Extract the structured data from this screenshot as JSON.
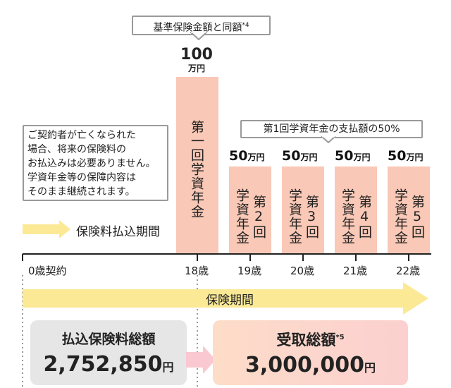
{
  "top_callout": {
    "text": "基準保険金額と同額",
    "note": "*4"
  },
  "first_payment": {
    "amount": "100",
    "unit": "万円",
    "label": "第一回学資年金"
  },
  "mid_callout": {
    "text": "第1回学資年金の支払額の50%"
  },
  "info_callout": {
    "lines": [
      "ご契約者が亡くなられた",
      "場合、将来の保険料の",
      "お払込みは必要ありません。",
      "学資年金等の保障内容は",
      "そのまま継続されます。"
    ]
  },
  "premium_period_label": "保険料払込期間",
  "payments": [
    {
      "amount": "50",
      "unit": "万円",
      "label_col1": "学資年金",
      "label_col2": "第2回"
    },
    {
      "amount": "50",
      "unit": "万円",
      "label_col1": "学資年金",
      "label_col2": "第3回"
    },
    {
      "amount": "50",
      "unit": "万円",
      "label_col1": "学資年金",
      "label_col2": "第4回"
    },
    {
      "amount": "50",
      "unit": "万円",
      "label_col1": "学資年金",
      "label_col2": "第5回"
    }
  ],
  "axis_labels": [
    "0歳契約",
    "18歳",
    "19歳",
    "20歳",
    "21歳",
    "22歳"
  ],
  "coverage_period_label": "保険期間",
  "total_premium": {
    "title": "払込保険料総額",
    "amount": "2,752,850",
    "unit": "円"
  },
  "total_received": {
    "title": "受取総額",
    "note": "*5",
    "amount": "3,000,000",
    "unit": "円"
  },
  "colors": {
    "bar": "#f9c8b6",
    "arrow_yellow": "#fbe996",
    "arrow_pink": "#f9c8d0",
    "grey_box": "#e6e6e6"
  }
}
